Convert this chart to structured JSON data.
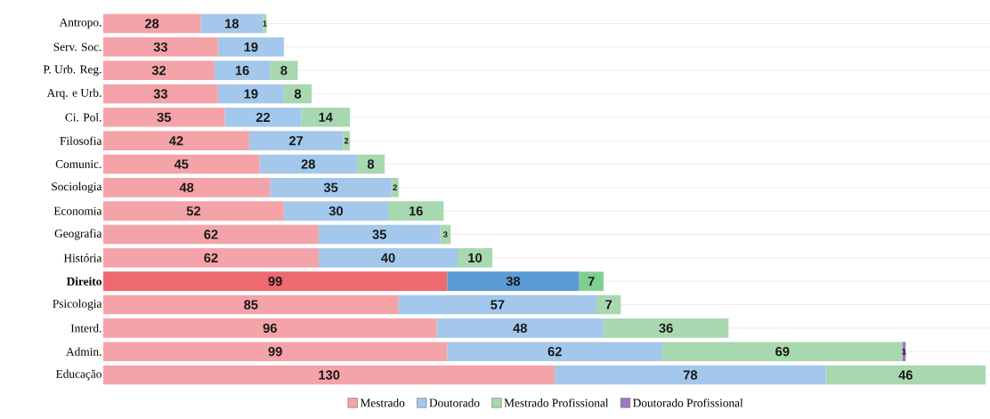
{
  "chart_data": {
    "type": "bar",
    "orientation": "horizontal",
    "stacked": true,
    "data_labels": true,
    "grid": "y",
    "legend": "bottom",
    "categories": [
      "Antropo.",
      "Serv. Soc.",
      "P. Urb. Reg.",
      "Arq. e Urb.",
      "Ci. Pol.",
      "Filosofia",
      "Comunic.",
      "Sociologia",
      "Economia",
      "Geografia",
      "História",
      "**Direito**",
      "Psicologia",
      "Interd.",
      "Admin.",
      "Educação"
    ],
    "series": [
      {
        "name": "Mestrado",
        "color": "#f4a3a8",
        "colors": [
          "#f4a3a8",
          "#f4a3a8",
          "#f4a3a8",
          "#f4a3a8",
          "#f4a3a8",
          "#f4a3a8",
          "#f4a3a8",
          "#f4a3a8",
          "#f4a3a8",
          "#f4a3a8",
          "#f4a3a8",
          "#ee6a6e",
          "#f4a3a8",
          "#f4a3a8",
          "#f4a3a8",
          "#f4a3a8"
        ],
        "values": [
          28,
          33,
          32,
          33,
          35,
          42,
          45,
          48,
          52,
          62,
          62,
          99,
          85,
          96,
          99,
          130
        ]
      },
      {
        "name": "Doutorado",
        "color": "#a3c8ec",
        "colors": [
          "#a3c8ec",
          "#a3c8ec",
          "#a3c8ec",
          "#a3c8ec",
          "#a3c8ec",
          "#a3c8ec",
          "#a3c8ec",
          "#a3c8ec",
          "#a3c8ec",
          "#a3c8ec",
          "#a3c8ec",
          "#5b9bd5",
          "#a3c8ec",
          "#a3c8ec",
          "#a3c8ec",
          "#a3c8ec"
        ],
        "values": [
          18,
          19,
          16,
          19,
          22,
          27,
          28,
          35,
          30,
          35,
          40,
          38,
          57,
          48,
          62,
          78
        ]
      },
      {
        "name": "Mestrado Profissional",
        "color": "#a8d8b0",
        "colors": [
          "#a8d8b0",
          "#a8d8b0",
          "#a8d8b0",
          "#a8d8b0",
          "#a8d8b0",
          "#a8d8b0",
          "#a8d8b0",
          "#a8d8b0",
          "#a8d8b0",
          "#a8d8b0",
          "#a8d8b0",
          "#7fcf8e",
          "#a8d8b0",
          "#a8d8b0",
          "#a8d8b0",
          "#a8d8b0"
        ],
        "values": [
          1,
          null,
          8,
          8,
          14,
          2,
          8,
          2,
          16,
          3,
          10,
          7,
          7,
          36,
          69,
          46
        ]
      },
      {
        "name": "Doutorado Profissional",
        "color": "#9b77c4",
        "values": [
          null,
          null,
          null,
          null,
          null,
          null,
          null,
          null,
          null,
          null,
          null,
          null,
          null,
          null,
          1,
          null
        ]
      }
    ]
  }
}
